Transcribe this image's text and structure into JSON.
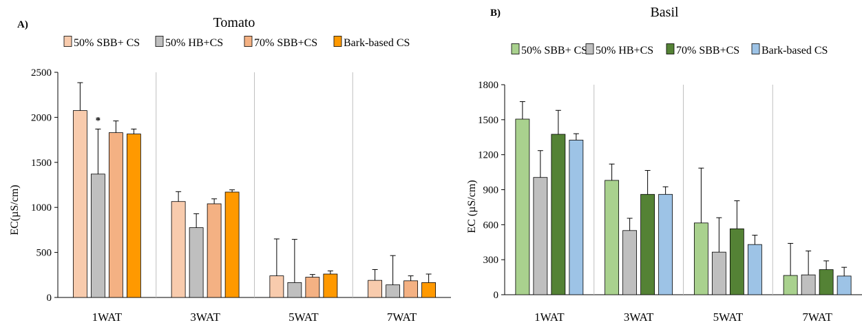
{
  "chart_data": [
    {
      "type": "bar",
      "panel_label": "A)",
      "title": "Tomato",
      "ylabel": "EC(µS/cm)",
      "xlabel": "",
      "categories": [
        "1WAT",
        "3WAT",
        "5WAT",
        "7WAT"
      ],
      "ylim": [
        0,
        2500
      ],
      "yticks": [
        0,
        500,
        1000,
        1500,
        2000,
        2500
      ],
      "grid": false,
      "legend_position": "top",
      "series": [
        {
          "name": "50% SBB+ CS",
          "color": "#F8CBAD",
          "values": [
            2075,
            1065,
            240,
            190
          ],
          "errors": [
            310,
            110,
            410,
            120
          ]
        },
        {
          "name": "50% HB+CS",
          "color": "#BFBFBF",
          "values": [
            1370,
            775,
            165,
            140
          ],
          "errors": [
            500,
            155,
            480,
            325
          ]
        },
        {
          "name": "70% SBB+CS",
          "color": "#F4B183",
          "values": [
            1830,
            1040,
            225,
            185
          ],
          "errors": [
            130,
            55,
            30,
            55
          ]
        },
        {
          "name": "Bark-based CS",
          "color": "#FF9900",
          "values": [
            1815,
            1170,
            260,
            165
          ],
          "errors": [
            55,
            25,
            35,
            95
          ]
        }
      ],
      "annotations": [
        {
          "text": "*",
          "category": "1WAT",
          "series": "50% HB+CS"
        }
      ]
    },
    {
      "type": "bar",
      "panel_label": "B)",
      "title": "Basil",
      "ylabel": "EC (µS/cm)",
      "xlabel": "",
      "categories": [
        "1WAT",
        "3WAT",
        "5WAT",
        "7WAT"
      ],
      "ylim": [
        0,
        1800
      ],
      "yticks": [
        0,
        300,
        600,
        900,
        1200,
        1500,
        1800
      ],
      "grid": false,
      "legend_position": "top",
      "series": [
        {
          "name": "50% SBB+ CS",
          "color": "#A9D18E",
          "values": [
            1505,
            980,
            615,
            165
          ],
          "errors": [
            150,
            140,
            470,
            275
          ]
        },
        {
          "name": "50% HB+CS",
          "color": "#BFBFBF",
          "values": [
            1005,
            550,
            365,
            170
          ],
          "errors": [
            230,
            105,
            295,
            205
          ]
        },
        {
          "name": "70% SBB+CS",
          "color": "#548235",
          "values": [
            1375,
            860,
            565,
            215
          ],
          "errors": [
            205,
            205,
            240,
            75
          ]
        },
        {
          "name": "Bark-based CS",
          "color": "#9DC3E6",
          "values": [
            1325,
            860,
            430,
            160
          ],
          "errors": [
            55,
            65,
            80,
            75
          ]
        }
      ],
      "annotations": []
    }
  ]
}
